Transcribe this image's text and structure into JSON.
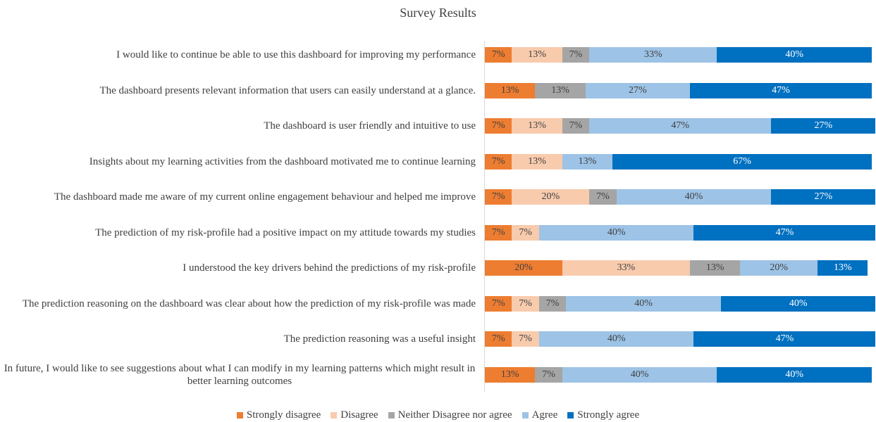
{
  "chart_data": {
    "type": "stacked-bar-horizontal",
    "title": "Survey Results",
    "categories": [
      "I would like to continue be able to use this dashboard for improving my performance",
      "The dashboard presents relevant information that users can easily understand at a glance.",
      "The dashboard is user friendly and intuitive to use",
      "Insights about my learning activities from the dashboard motivated me to continue learning",
      "The dashboard made me aware of my current online engagement behaviour and helped me improve",
      "The prediction of my risk-profile had a positive impact on my attitude towards my studies",
      "I understood the key drivers behind the predictions of my risk-profile",
      "The prediction reasoning on the dashboard was clear about how the prediction of my risk-profile was made",
      "The prediction reasoning was a useful insight",
      "In future, I would like to see suggestions about what I can modify in my learning patterns which might result in better learning outcomes"
    ],
    "xlim": [
      0,
      100
    ],
    "legend": "bottom",
    "series": [
      {
        "name": "Strongly disagree",
        "color": "#ed7d31",
        "values": [
          7,
          13,
          7,
          7,
          7,
          7,
          20,
          7,
          7,
          13
        ],
        "value_labels": [
          "7%",
          "13%",
          "7%",
          "7%",
          "7%",
          "7%",
          "20%",
          "7%",
          "7%",
          "13%"
        ]
      },
      {
        "name": "Disagree",
        "color": "#f8cbad",
        "values": [
          13,
          0,
          13,
          13,
          20,
          7,
          33,
          7,
          7,
          0
        ],
        "value_labels": [
          "13%",
          null,
          "13%",
          "13%",
          "20%",
          "7%",
          "33%",
          "7%",
          "7%",
          null
        ]
      },
      {
        "name": "Neither Disagree nor agree",
        "color": "#a5a5a5",
        "values": [
          7,
          13,
          7,
          0,
          7,
          0,
          13,
          7,
          0,
          7
        ],
        "value_labels": [
          "7%",
          "13%",
          "7%",
          null,
          "7%",
          null,
          "13%",
          "7%",
          null,
          "7%"
        ]
      },
      {
        "name": "Agree",
        "color": "#9dc3e6",
        "values": [
          33,
          27,
          47,
          13,
          40,
          40,
          20,
          40,
          40,
          40
        ],
        "value_labels": [
          "33%",
          "27%",
          "47%",
          "13%",
          "40%",
          "40%",
          "20%",
          "40%",
          "40%",
          "40%"
        ]
      },
      {
        "name": "Strongly agree",
        "color": "#0070c0",
        "values": [
          40,
          47,
          27,
          67,
          27,
          47,
          13,
          40,
          47,
          40
        ],
        "value_labels": [
          "40%",
          "47%",
          "27%",
          "67%",
          "27%",
          "47%",
          "13%",
          "40%",
          "47%",
          "40%"
        ]
      }
    ]
  }
}
